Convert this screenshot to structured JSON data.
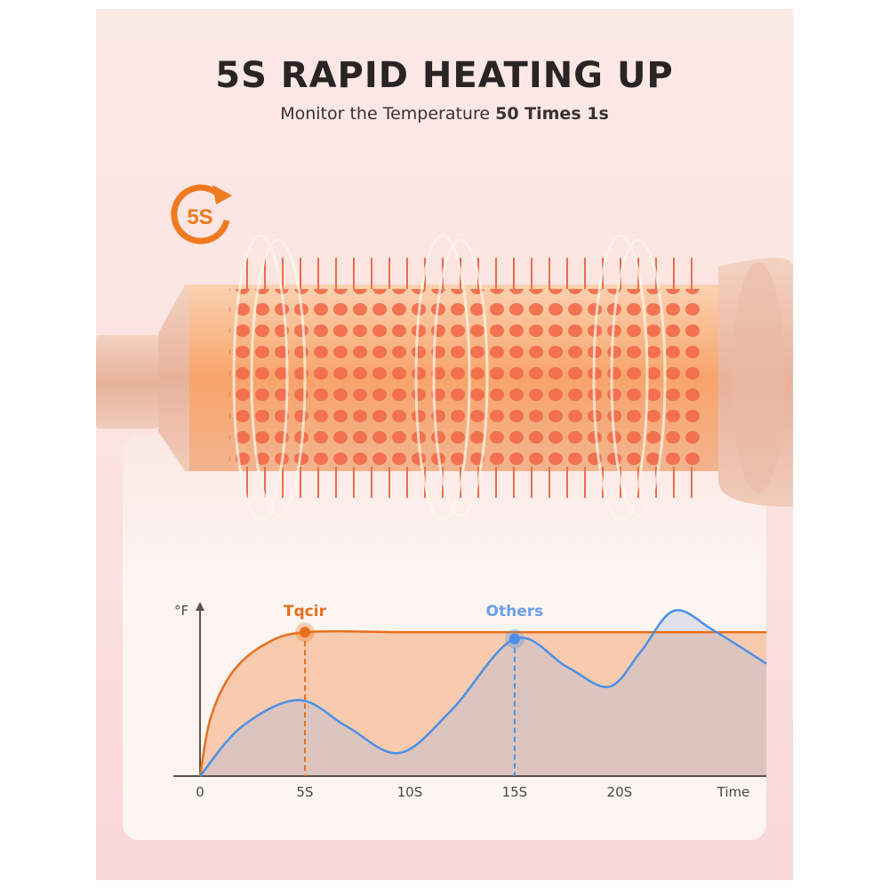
{
  "header": {
    "title": "5S RAPID HEATING UP",
    "subtitle_prefix": "Monitor the Temperature ",
    "subtitle_bold": "50 Times 1s"
  },
  "badge": {
    "text": "5S",
    "icon": "clock-arrow-icon",
    "color": "#f07a1e"
  },
  "colors": {
    "tqcir": "#e86f1c",
    "others": "#4a90e8",
    "brush": "#f5a070"
  },
  "chart_data": {
    "type": "area",
    "ylabel": "°F",
    "xlabel": "Time",
    "x_ticks": [
      "0",
      "5S",
      "10S",
      "15S",
      "20S"
    ],
    "xlim": [
      0,
      27
    ],
    "ylim": [
      0,
      100
    ],
    "grid": false,
    "series": [
      {
        "name": "Tqcir",
        "color": "#e86f1c",
        "points": [
          [
            0,
            0
          ],
          [
            0.5,
            35
          ],
          [
            1.5,
            62
          ],
          [
            3,
            79
          ],
          [
            5,
            87
          ],
          [
            10,
            87
          ],
          [
            15,
            87
          ],
          [
            20,
            87
          ],
          [
            27,
            87
          ]
        ],
        "marker_x": 5
      },
      {
        "name": "Others",
        "color": "#4a90e8",
        "points": [
          [
            0,
            0
          ],
          [
            2,
            30
          ],
          [
            4.7,
            46
          ],
          [
            7,
            30
          ],
          [
            9.5,
            14
          ],
          [
            12,
            40
          ],
          [
            15,
            83
          ],
          [
            17.5,
            66
          ],
          [
            19.5,
            54
          ],
          [
            21,
            75
          ],
          [
            22.6,
            100
          ],
          [
            24.5,
            88
          ],
          [
            27,
            68
          ]
        ],
        "marker_x": 15
      }
    ]
  }
}
